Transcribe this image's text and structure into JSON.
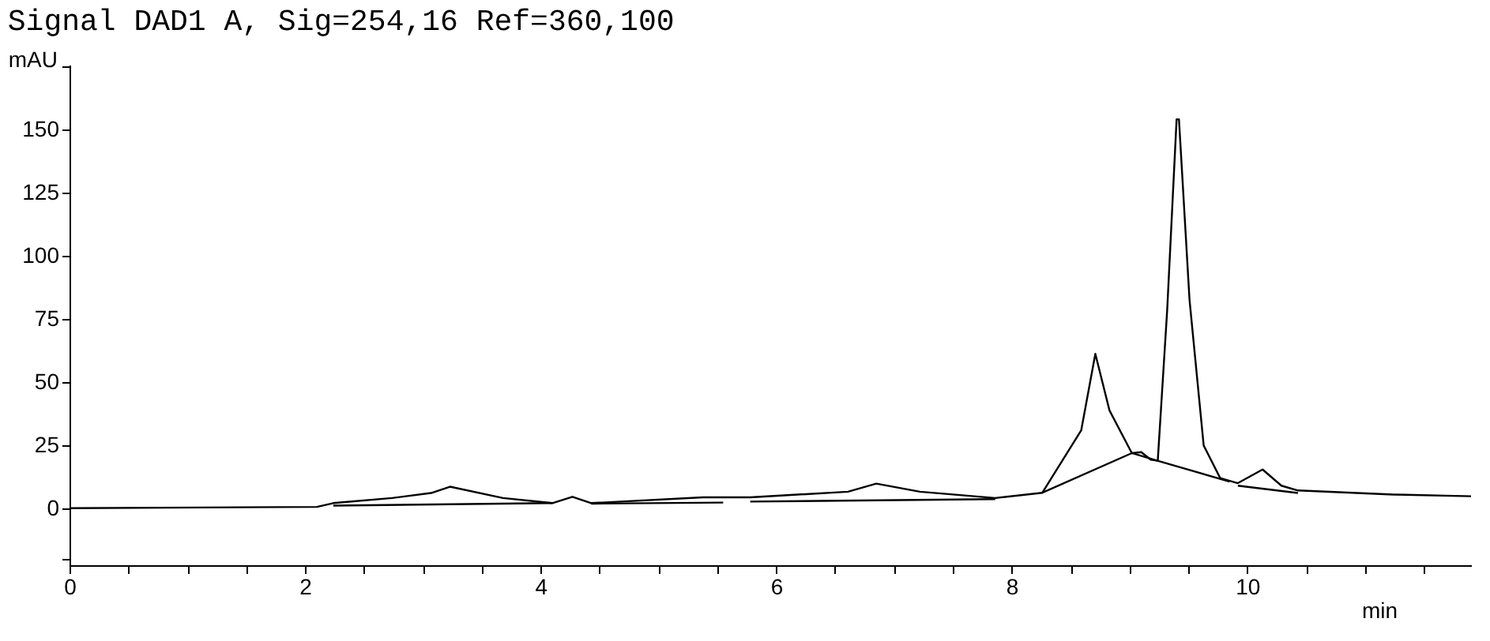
{
  "chart_data": {
    "type": "line",
    "title": "Signal DAD1 A, Sig=254,16 Ref=360,100",
    "xlabel": "min",
    "ylabel": "mAU",
    "xlim": [
      0,
      11.9
    ],
    "ylim": [
      -22.6,
      175.6
    ],
    "xticks": [
      0,
      {
        "value": 0.5,
        "label": null
      },
      {
        "value": 1,
        "label": null
      },
      {
        "value": 1.5,
        "label": null
      },
      2,
      {
        "value": 2.5,
        "label": null
      },
      {
        "value": 3,
        "label": null
      },
      {
        "value": 3.5,
        "label": null
      },
      4,
      {
        "value": 4.5,
        "label": null
      },
      {
        "value": 5,
        "label": null
      },
      {
        "value": 5.5,
        "label": null
      },
      6,
      {
        "value": 6.5,
        "label": null
      },
      {
        "value": 7,
        "label": null
      },
      {
        "value": 7.5,
        "label": null
      },
      8,
      {
        "value": 8.5,
        "label": null
      },
      {
        "value": 9,
        "label": null
      },
      {
        "value": 9.5,
        "label": null
      },
      10,
      {
        "value": 10.5,
        "label": null
      },
      {
        "value": 11,
        "label": null
      },
      {
        "value": 11.5,
        "label": null
      }
    ],
    "yticks": [
      {
        "value": -20,
        "label": null
      },
      0,
      25,
      50,
      75,
      100,
      125,
      150,
      {
        "value": 175,
        "label": null
      }
    ],
    "grid": false,
    "marker": "none",
    "line_style": "solid",
    "series": [
      {
        "color": "#000000",
        "x": [
          0,
          2.1,
          2.24,
          2.74,
          3.07,
          3.23,
          3.68,
          4.1,
          4.27,
          4.43,
          5.38,
          5.78,
          6.61,
          6.85,
          7.22,
          7.86,
          8.26,
          8.59,
          8.71,
          8.83,
          9.02,
          9.1,
          9.18,
          9.24,
          9.32,
          9.4,
          9.42,
          9.51,
          9.63,
          9.77,
          9.92,
          10.13,
          10.29,
          10.43,
          11.24,
          11.9
        ],
        "values": [
          0,
          0.5,
          2,
          4,
          6,
          8.5,
          4,
          2,
          4.5,
          2,
          4.3,
          4.3,
          6.5,
          9.7,
          6.5,
          4,
          6.1,
          30.8,
          61.1,
          38.7,
          21.8,
          22.2,
          19.2,
          18.8,
          78.4,
          154,
          154,
          82.3,
          24.8,
          11.9,
          9.9,
          15.3,
          8.9,
          7,
          5.4,
          4.7
        ]
      },
      {
        "color": "#000000",
        "x": [
          2.24,
          4.1
        ],
        "values": [
          1,
          2
        ]
      },
      {
        "color": "#000000",
        "x": [
          4.43,
          5.55
        ],
        "values": [
          1.8,
          2.2
        ]
      },
      {
        "color": "#000000",
        "x": [
          5.78,
          7.86
        ],
        "values": [
          2.6,
          3.6
        ]
      },
      {
        "color": "#000000",
        "x": [
          8.26,
          9.02,
          9.22,
          9.85
        ],
        "values": [
          6.1,
          21.8,
          19,
          10.5
        ]
      },
      {
        "color": "#000000",
        "x": [
          9.92,
          10.43
        ],
        "values": [
          8.9,
          6
        ]
      }
    ]
  }
}
